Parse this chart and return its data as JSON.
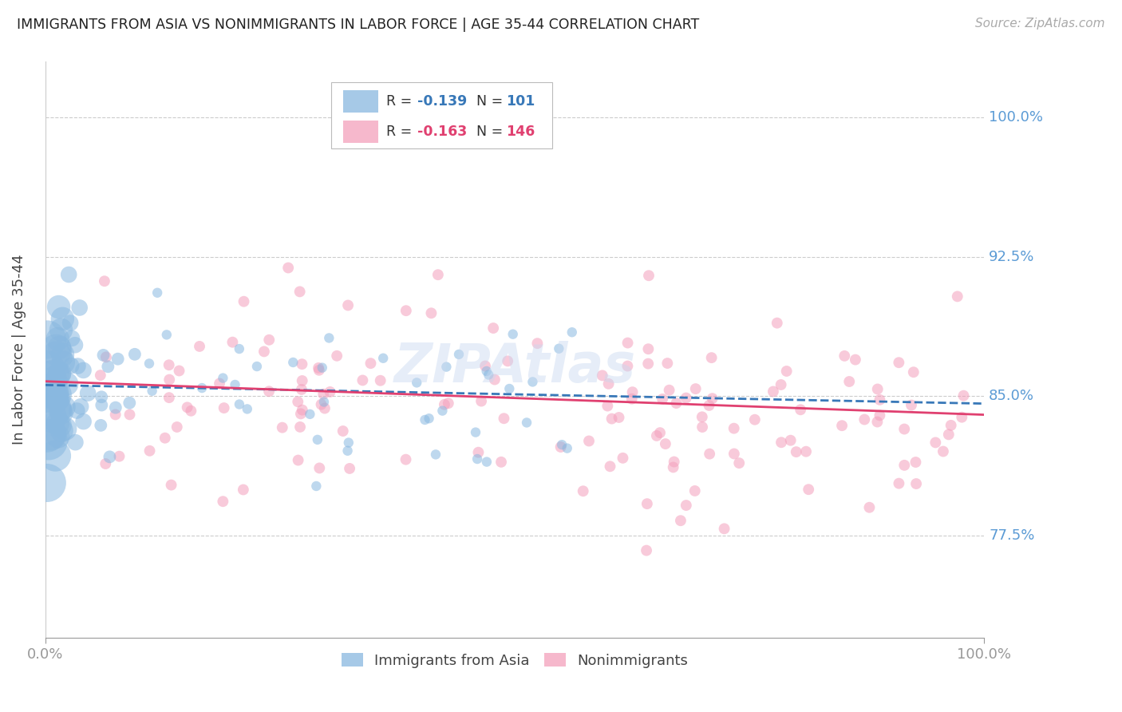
{
  "title": "IMMIGRANTS FROM ASIA VS NONIMMIGRANTS IN LABOR FORCE | AGE 35-44 CORRELATION CHART",
  "source": "Source: ZipAtlas.com",
  "ylabel": "In Labor Force | Age 35-44",
  "xlabel": "",
  "xlim": [
    0.0,
    1.0
  ],
  "ylim": [
    0.72,
    1.03
  ],
  "yticks": [
    0.775,
    0.85,
    0.925,
    1.0
  ],
  "ytick_labels": [
    "77.5%",
    "85.0%",
    "92.5%",
    "100.0%"
  ],
  "xtick_labels": [
    "0.0%",
    "100.0%"
  ],
  "blue_color": "#89b8e0",
  "pink_color": "#f4a0bc",
  "blue_line_color": "#3878b8",
  "pink_line_color": "#e04070",
  "axis_color": "#5b9bd5",
  "background_color": "#ffffff",
  "grid_color": "#cccccc",
  "blue_R": -0.139,
  "blue_N": 101,
  "pink_R": -0.163,
  "pink_N": 146,
  "blue_intercept": 0.856,
  "blue_slope": -0.01,
  "pink_intercept": 0.858,
  "pink_slope": -0.018
}
